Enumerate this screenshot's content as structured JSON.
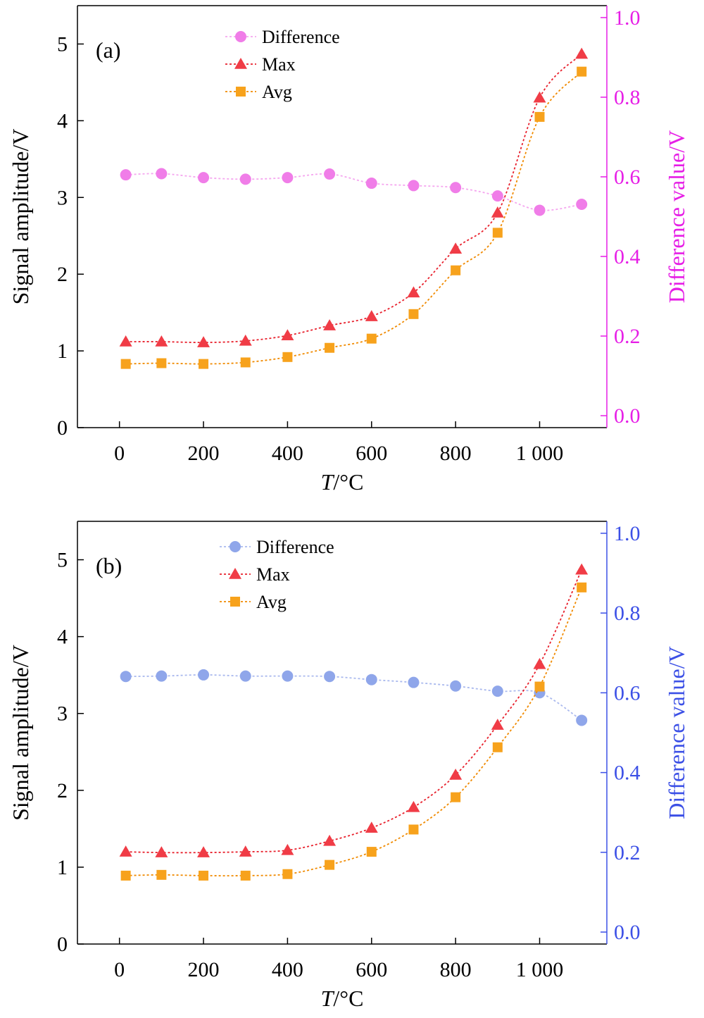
{
  "chart_data": [
    {
      "type": "line",
      "panel_label": "(a)",
      "xlabel_italic": "T",
      "xlabel_rest": "/°C",
      "ylabel": "Signal amplitude/V",
      "y2label": "Difference value/V",
      "xlim": [
        -100,
        1160
      ],
      "ylim": [
        0,
        5.5
      ],
      "y2lim": [
        -0.03,
        1.03
      ],
      "xticks": [
        0,
        200,
        400,
        600,
        800,
        1000
      ],
      "xtick_labels": [
        "0",
        "200",
        "400",
        "600",
        "800",
        "1 000"
      ],
      "yticks": [
        0,
        1,
        2,
        3,
        4,
        5
      ],
      "ytick_labels": [
        "0",
        "1",
        "2",
        "3",
        "4",
        "5"
      ],
      "y2ticks": [
        0.0,
        0.2,
        0.4,
        0.6,
        0.8,
        1.0
      ],
      "y2tick_labels": [
        "0.0",
        "0.2",
        "0.4",
        "0.6",
        "0.8",
        "1.0"
      ],
      "right_axis_color": "#e61ee6",
      "grid": false,
      "legend": "top-center",
      "x": [
        15,
        100,
        200,
        300,
        400,
        500,
        600,
        700,
        800,
        900,
        1000,
        1100
      ],
      "series": [
        {
          "name": "Difference",
          "axis": "right",
          "marker": "circle",
          "color": "#f07de8",
          "line_color": "#f5a6ef",
          "values": [
            0.605,
            0.608,
            0.598,
            0.594,
            0.598,
            0.607,
            0.584,
            0.578,
            0.573,
            0.552,
            0.516,
            0.531
          ]
        },
        {
          "name": "Max",
          "axis": "left",
          "marker": "triangle",
          "color": "#f03c46",
          "line_color": "#e8202c",
          "values": [
            1.12,
            1.12,
            1.11,
            1.13,
            1.2,
            1.33,
            1.45,
            1.76,
            2.33,
            2.8,
            4.3,
            4.87
          ]
        },
        {
          "name": "Avg",
          "axis": "left",
          "marker": "square",
          "color": "#f7a21c",
          "line_color": "#f08a00",
          "values": [
            0.83,
            0.84,
            0.83,
            0.85,
            0.92,
            1.04,
            1.16,
            1.48,
            2.05,
            2.54,
            4.05,
            4.64
          ]
        }
      ]
    },
    {
      "type": "line",
      "panel_label": "(b)",
      "xlabel_italic": "T",
      "xlabel_rest": "/°C",
      "ylabel": "Signal amplitude/V",
      "y2label": "Difference value/V",
      "xlim": [
        -100,
        1160
      ],
      "ylim": [
        0,
        5.5
      ],
      "y2lim": [
        -0.03,
        1.03
      ],
      "xticks": [
        0,
        200,
        400,
        600,
        800,
        1000
      ],
      "xtick_labels": [
        "0",
        "200",
        "400",
        "600",
        "800",
        "1 000"
      ],
      "yticks": [
        0,
        1,
        2,
        3,
        4,
        5
      ],
      "ytick_labels": [
        "0",
        "1",
        "2",
        "3",
        "4",
        "5"
      ],
      "y2ticks": [
        0.0,
        0.2,
        0.4,
        0.6,
        0.8,
        1.0
      ],
      "y2tick_labels": [
        "0.0",
        "0.2",
        "0.4",
        "0.6",
        "0.8",
        "1.0"
      ],
      "right_axis_color": "#3c50e6",
      "grid": false,
      "legend": "top-center",
      "x": [
        15,
        100,
        200,
        300,
        400,
        500,
        600,
        700,
        800,
        900,
        1000,
        1100
      ],
      "series": [
        {
          "name": "Difference",
          "axis": "right",
          "marker": "circle",
          "color": "#8fa6ea",
          "line_color": "#aab9ee",
          "values": [
            0.641,
            0.642,
            0.645,
            0.642,
            0.642,
            0.641,
            0.633,
            0.626,
            0.617,
            0.604,
            0.6,
            0.531
          ]
        },
        {
          "name": "Max",
          "axis": "left",
          "marker": "triangle",
          "color": "#f03c46",
          "line_color": "#e8202c",
          "values": [
            1.2,
            1.19,
            1.19,
            1.2,
            1.22,
            1.34,
            1.51,
            1.78,
            2.2,
            2.85,
            3.64,
            4.87
          ]
        },
        {
          "name": "Avg",
          "axis": "left",
          "marker": "square",
          "color": "#f7a21c",
          "line_color": "#f08a00",
          "values": [
            0.89,
            0.9,
            0.89,
            0.89,
            0.91,
            1.03,
            1.2,
            1.49,
            1.91,
            2.56,
            3.35,
            4.64
          ]
        }
      ]
    }
  ]
}
